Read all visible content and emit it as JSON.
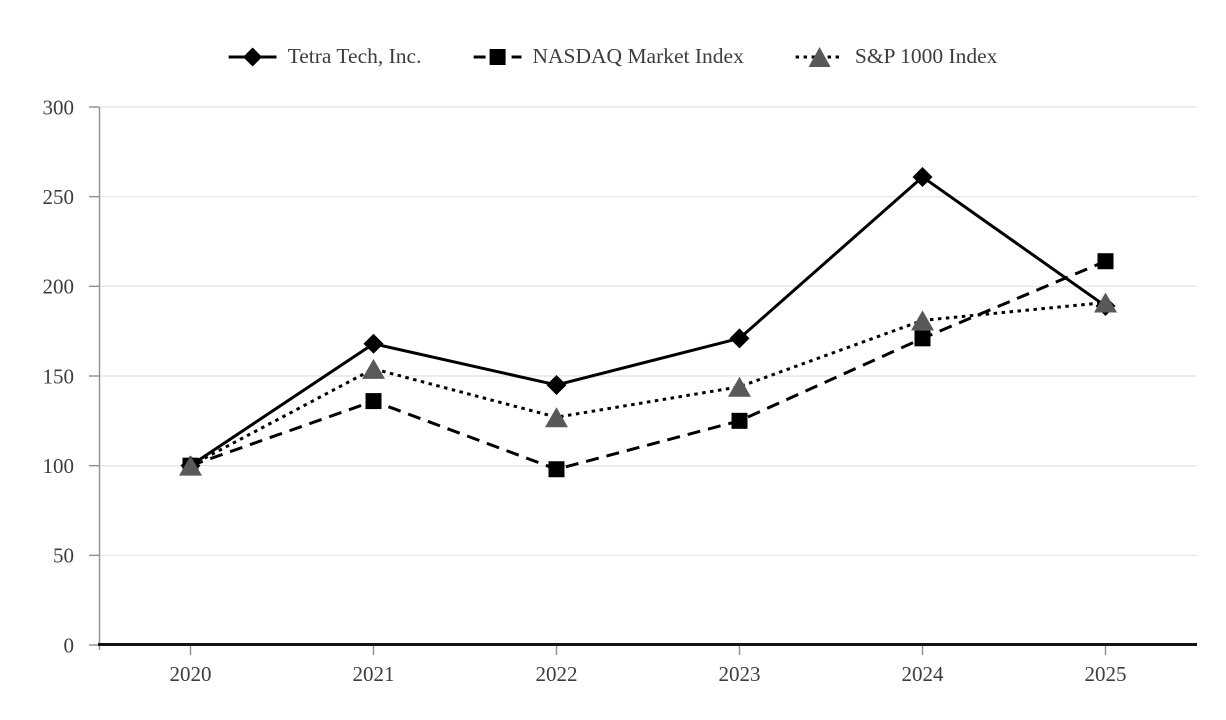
{
  "chart_data": {
    "type": "line",
    "title": "",
    "categories": [
      "2020",
      "2021",
      "2022",
      "2023",
      "2024",
      "2025"
    ],
    "series": [
      {
        "name": "Tetra Tech, Inc.",
        "values": [
          100,
          168,
          145,
          171,
          261,
          189
        ],
        "color": "#000000",
        "line_style": "solid",
        "marker": "diamond",
        "marker_color": "#000000"
      },
      {
        "name": "NASDAQ Market Index",
        "values": [
          100,
          136,
          98,
          125,
          171,
          214
        ],
        "color": "#000000",
        "line_style": "dashed",
        "marker": "square",
        "marker_color": "#000000"
      },
      {
        "name": "S&P 1000 Index",
        "values": [
          100,
          154,
          127,
          144,
          181,
          191
        ],
        "color": "#000000",
        "line_style": "dotted",
        "marker": "triangle",
        "marker_color": "#595959"
      }
    ],
    "xlabel": "",
    "ylabel": "",
    "ylim": [
      0,
      300
    ],
    "yticks": [
      0,
      50,
      100,
      150,
      200,
      250,
      300
    ],
    "grid": true,
    "legend_position": "top",
    "style": {
      "grid_color": "#e7e7e7",
      "y_axis_color": "#8f8f8f",
      "x_axis_color": "#141414",
      "label_color": "#3d3d3d"
    }
  }
}
